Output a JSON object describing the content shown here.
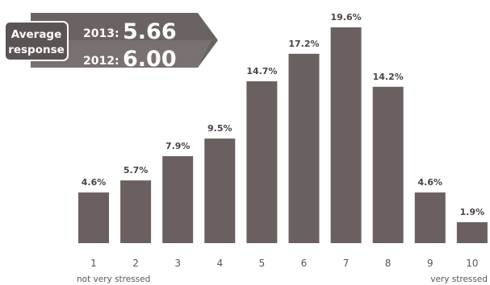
{
  "summary": {
    "label_line1": "Average",
    "label_line2": "response",
    "rows": [
      {
        "year": "2013:",
        "value": "5.66"
      },
      {
        "year": "2012:",
        "value": "6.00"
      }
    ]
  },
  "chart_data": {
    "type": "bar",
    "categories": [
      "1",
      "2",
      "3",
      "4",
      "5",
      "6",
      "7",
      "8",
      "9",
      "10"
    ],
    "values": [
      4.6,
      5.7,
      7.9,
      9.5,
      14.7,
      17.2,
      19.6,
      14.2,
      4.6,
      1.9
    ],
    "value_labels": [
      "4.6%",
      "5.7%",
      "7.9%",
      "9.5%",
      "14.7%",
      "17.2%",
      "19.6%",
      "14.2%",
      "4.6%",
      "1.9%"
    ],
    "x_end_labels": {
      "left": "not very stressed",
      "right": "very stressed"
    },
    "colors": {
      "bar": "#6a605f",
      "banner_dark": "#5b5454",
      "banner_light": "#7a7271"
    }
  }
}
